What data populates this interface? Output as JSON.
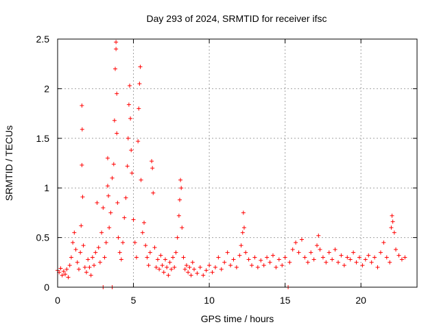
{
  "chart_data": {
    "type": "scatter",
    "title": "Day 293 of 2024, SRMTID for receiver ifsc",
    "xlabel": "GPS time / hours",
    "ylabel": "SRMTID / TECUs",
    "xlim": [
      0,
      23.7
    ],
    "ylim": [
      0,
      2.5
    ],
    "x_ticks": [
      0,
      5,
      10,
      15,
      20
    ],
    "x_tick_labels": [
      "0",
      "5",
      "10",
      "15",
      "20"
    ],
    "y_ticks": [
      0,
      0.5,
      1,
      1.5,
      2,
      2.5
    ],
    "y_tick_labels": [
      "0",
      "0.5",
      "1",
      "1.5",
      "2",
      "2.5"
    ],
    "grid": true,
    "marker": "+",
    "marker_color": "#ff0000",
    "series": [
      {
        "name": "ifsc",
        "points": [
          [
            0.0,
            0.17
          ],
          [
            0.1,
            0.15
          ],
          [
            0.2,
            0.19
          ],
          [
            0.3,
            0.12
          ],
          [
            0.4,
            0.16
          ],
          [
            0.5,
            0.13
          ],
          [
            0.6,
            0.18
          ],
          [
            0.7,
            0.1
          ],
          [
            0.8,
            0.22
          ],
          [
            0.9,
            0.3
          ],
          [
            1.0,
            0.45
          ],
          [
            1.1,
            0.55
          ],
          [
            1.2,
            0.38
          ],
          [
            1.3,
            0.25
          ],
          [
            1.4,
            0.18
          ],
          [
            1.5,
            0.35
          ],
          [
            1.55,
            0.62
          ],
          [
            1.6,
            1.23
          ],
          [
            1.6,
            1.83
          ],
          [
            1.62,
            1.59
          ],
          [
            1.65,
            0.91
          ],
          [
            1.7,
            0.42
          ],
          [
            1.8,
            0.2
          ],
          [
            1.9,
            0.15
          ],
          [
            2.0,
            0.28
          ],
          [
            2.1,
            0.2
          ],
          [
            2.2,
            0.12
          ],
          [
            2.3,
            0.3
          ],
          [
            2.4,
            0.22
          ],
          [
            2.5,
            0.35
          ],
          [
            2.6,
            0.85
          ],
          [
            2.7,
            0.4
          ],
          [
            2.8,
            0.25
          ],
          [
            2.9,
            0.55
          ],
          [
            3.0,
            0.8
          ],
          [
            3.0,
            0.0
          ],
          [
            3.1,
            0.3
          ],
          [
            3.2,
            0.45
          ],
          [
            3.3,
            1.02
          ],
          [
            3.3,
            1.3
          ],
          [
            3.35,
            0.92
          ],
          [
            3.4,
            0.6
          ],
          [
            3.5,
            0.75
          ],
          [
            3.6,
            1.1
          ],
          [
            3.6,
            0.0
          ],
          [
            3.7,
            1.24
          ],
          [
            3.75,
            1.68
          ],
          [
            3.8,
            2.2
          ],
          [
            3.85,
            2.47
          ],
          [
            3.85,
            2.4
          ],
          [
            3.9,
            1.95
          ],
          [
            3.9,
            1.55
          ],
          [
            3.95,
            0.85
          ],
          [
            4.0,
            0.5
          ],
          [
            4.1,
            0.35
          ],
          [
            4.2,
            0.28
          ],
          [
            4.3,
            0.45
          ],
          [
            4.4,
            0.7
          ],
          [
            4.5,
            0.9
          ],
          [
            4.6,
            1.22
          ],
          [
            4.65,
            1.5
          ],
          [
            4.7,
            1.84
          ],
          [
            4.75,
            2.03
          ],
          [
            4.8,
            1.7
          ],
          [
            4.85,
            1.38
          ],
          [
            4.9,
            1.15
          ],
          [
            5.0,
            0.68
          ],
          [
            5.1,
            0.45
          ],
          [
            5.2,
            0.3
          ],
          [
            5.3,
            1.47
          ],
          [
            5.35,
            1.8
          ],
          [
            5.4,
            2.05
          ],
          [
            5.45,
            2.22
          ],
          [
            5.5,
            1.08
          ],
          [
            5.6,
            0.55
          ],
          [
            5.7,
            0.65
          ],
          [
            5.8,
            0.42
          ],
          [
            5.9,
            0.3
          ],
          [
            6.0,
            0.22
          ],
          [
            6.1,
            0.35
          ],
          [
            6.2,
            1.27
          ],
          [
            6.25,
            1.2
          ],
          [
            6.3,
            0.95
          ],
          [
            6.4,
            0.4
          ],
          [
            6.5,
            0.2
          ],
          [
            6.6,
            0.28
          ],
          [
            6.7,
            0.18
          ],
          [
            6.8,
            0.32
          ],
          [
            6.9,
            0.22
          ],
          [
            7.0,
            0.15
          ],
          [
            7.1,
            0.28
          ],
          [
            7.2,
            0.2
          ],
          [
            7.3,
            0.12
          ],
          [
            7.4,
            0.25
          ],
          [
            7.5,
            0.18
          ],
          [
            7.6,
            0.3
          ],
          [
            7.7,
            0.2
          ],
          [
            7.8,
            0.35
          ],
          [
            7.9,
            0.5
          ],
          [
            8.0,
            0.72
          ],
          [
            8.05,
            0.88
          ],
          [
            8.1,
            1.08
          ],
          [
            8.15,
            1.0
          ],
          [
            8.2,
            0.6
          ],
          [
            8.3,
            0.3
          ],
          [
            8.4,
            0.18
          ],
          [
            8.5,
            0.22
          ],
          [
            8.6,
            0.15
          ],
          [
            8.7,
            0.2
          ],
          [
            8.8,
            0.12
          ],
          [
            8.9,
            0.25
          ],
          [
            9.0,
            0.18
          ],
          [
            9.2,
            0.14
          ],
          [
            9.4,
            0.2
          ],
          [
            9.6,
            0.12
          ],
          [
            9.8,
            0.17
          ],
          [
            10.0,
            0.22
          ],
          [
            10.2,
            0.15
          ],
          [
            10.4,
            0.2
          ],
          [
            10.6,
            0.3
          ],
          [
            10.8,
            0.18
          ],
          [
            11.0,
            0.25
          ],
          [
            11.2,
            0.35
          ],
          [
            11.4,
            0.22
          ],
          [
            11.6,
            0.28
          ],
          [
            11.8,
            0.2
          ],
          [
            12.0,
            0.32
          ],
          [
            12.1,
            0.42
          ],
          [
            12.2,
            0.55
          ],
          [
            12.25,
            0.75
          ],
          [
            12.3,
            0.6
          ],
          [
            12.4,
            0.35
          ],
          [
            12.6,
            0.28
          ],
          [
            12.8,
            0.22
          ],
          [
            13.0,
            0.3
          ],
          [
            13.2,
            0.2
          ],
          [
            13.4,
            0.27
          ],
          [
            13.6,
            0.22
          ],
          [
            13.8,
            0.3
          ],
          [
            14.0,
            0.25
          ],
          [
            14.2,
            0.32
          ],
          [
            14.4,
            0.2
          ],
          [
            14.6,
            0.28
          ],
          [
            14.8,
            0.22
          ],
          [
            15.0,
            0.3
          ],
          [
            15.2,
            0.0
          ],
          [
            15.3,
            0.25
          ],
          [
            15.5,
            0.38
          ],
          [
            15.7,
            0.45
          ],
          [
            15.9,
            0.35
          ],
          [
            16.1,
            0.48
          ],
          [
            16.3,
            0.3
          ],
          [
            16.5,
            0.25
          ],
          [
            16.7,
            0.35
          ],
          [
            16.9,
            0.28
          ],
          [
            17.1,
            0.42
          ],
          [
            17.2,
            0.52
          ],
          [
            17.3,
            0.38
          ],
          [
            17.5,
            0.3
          ],
          [
            17.7,
            0.25
          ],
          [
            17.9,
            0.35
          ],
          [
            18.1,
            0.28
          ],
          [
            18.3,
            0.38
          ],
          [
            18.5,
            0.25
          ],
          [
            18.7,
            0.32
          ],
          [
            18.9,
            0.22
          ],
          [
            19.1,
            0.3
          ],
          [
            19.3,
            0.28
          ],
          [
            19.5,
            0.35
          ],
          [
            19.7,
            0.25
          ],
          [
            19.9,
            0.3
          ],
          [
            20.1,
            0.22
          ],
          [
            20.3,
            0.28
          ],
          [
            20.5,
            0.32
          ],
          [
            20.7,
            0.25
          ],
          [
            20.9,
            0.3
          ],
          [
            21.1,
            0.2
          ],
          [
            21.3,
            0.35
          ],
          [
            21.5,
            0.45
          ],
          [
            21.7,
            0.3
          ],
          [
            21.9,
            0.25
          ],
          [
            22.0,
            0.6
          ],
          [
            22.05,
            0.72
          ],
          [
            22.1,
            0.66
          ],
          [
            22.2,
            0.55
          ],
          [
            22.3,
            0.38
          ],
          [
            22.5,
            0.32
          ],
          [
            22.7,
            0.28
          ],
          [
            22.9,
            0.3
          ]
        ]
      }
    ]
  }
}
